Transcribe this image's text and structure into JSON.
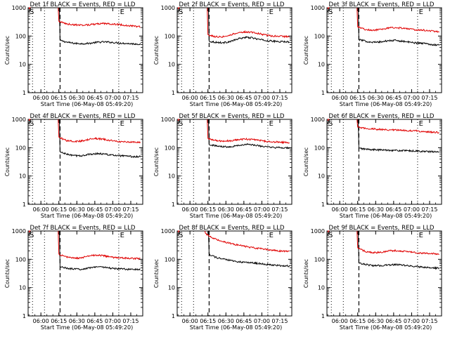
{
  "figure": {
    "legend_text": "BLACK = Events, RED = LLD",
    "xlabel": "Start Time (06-May-08 05:49:20)",
    "ylabel": "Counts/sec",
    "x_tick_labels": [
      "06:00",
      "06:15",
      "06:30",
      "06:45",
      "07:00",
      "07:15"
    ],
    "y_tick_labels": [
      "1",
      "10",
      "100",
      "1000"
    ],
    "marker_s": "S",
    "marker_e": "E",
    "colors": {
      "events": "#000000",
      "lld": "#e00000"
    }
  },
  "chart_data": [
    {
      "type": "line",
      "title": "Det 1f",
      "xlim": [
        "05:49:20",
        "07:25"
      ],
      "ylim": [
        1,
        1000
      ],
      "yscale": "log",
      "series": [
        {
          "name": "Events",
          "start": "06:16",
          "values": [
            70,
            60,
            55,
            54,
            55,
            60,
            62,
            60,
            57,
            55,
            53,
            52
          ]
        },
        {
          "name": "LLD",
          "start": "06:15",
          "values": [
            330,
            270,
            250,
            245,
            250,
            265,
            275,
            270,
            255,
            240,
            225,
            215
          ]
        }
      ]
    },
    {
      "type": "line",
      "title": "Det 2f",
      "xlim": [
        "05:49:20",
        "07:25"
      ],
      "ylim": [
        1,
        1000
      ],
      "yscale": "log",
      "series": [
        {
          "name": "Events",
          "start": "06:16",
          "values": [
            65,
            60,
            58,
            65,
            80,
            90,
            85,
            75,
            68,
            65,
            63,
            62
          ]
        },
        {
          "name": "LLD",
          "start": "06:15",
          "values": [
            110,
            95,
            95,
            110,
            130,
            140,
            135,
            120,
            105,
            100,
            97,
            95
          ]
        }
      ]
    },
    {
      "type": "line",
      "title": "Det 3f",
      "xlim": [
        "05:49:20",
        "07:25"
      ],
      "ylim": [
        1,
        1000
      ],
      "yscale": "log",
      "series": [
        {
          "name": "Events",
          "start": "06:16",
          "values": [
            75,
            65,
            60,
            62,
            68,
            70,
            66,
            60,
            57,
            55,
            50,
            48
          ]
        },
        {
          "name": "LLD",
          "start": "06:15",
          "values": [
            210,
            170,
            160,
            170,
            190,
            200,
            190,
            175,
            165,
            160,
            150,
            140
          ]
        }
      ]
    },
    {
      "type": "line",
      "title": "Det 4f",
      "xlim": [
        "05:49:20",
        "07:25"
      ],
      "ylim": [
        1,
        1000
      ],
      "yscale": "log",
      "series": [
        {
          "name": "Events",
          "start": "06:16",
          "values": [
            70,
            58,
            52,
            52,
            58,
            62,
            60,
            55,
            52,
            50,
            48,
            48
          ]
        },
        {
          "name": "LLD",
          "start": "06:15",
          "values": [
            230,
            180,
            165,
            170,
            195,
            210,
            200,
            180,
            165,
            160,
            155,
            150
          ]
        }
      ]
    },
    {
      "type": "line",
      "title": "Det 5f",
      "xlim": [
        "05:49:20",
        "07:25"
      ],
      "ylim": [
        1,
        1000
      ],
      "yscale": "log",
      "series": [
        {
          "name": "Events",
          "start": "06:16",
          "values": [
            130,
            115,
            108,
            110,
            120,
            130,
            125,
            115,
            105,
            100,
            100,
            98
          ]
        },
        {
          "name": "LLD",
          "start": "06:15",
          "values": [
            210,
            180,
            170,
            175,
            190,
            200,
            195,
            180,
            165,
            160,
            155,
            150
          ]
        }
      ]
    },
    {
      "type": "line",
      "title": "Det 6f",
      "xlim": [
        "05:49:20",
        "07:25"
      ],
      "ylim": [
        1,
        1000
      ],
      "yscale": "log",
      "series": [
        {
          "name": "Events",
          "start": "06:16",
          "values": [
            95,
            88,
            85,
            83,
            82,
            80,
            78,
            77,
            76,
            73,
            72,
            70
          ]
        },
        {
          "name": "LLD",
          "start": "06:15",
          "values": [
            520,
            480,
            460,
            440,
            430,
            420,
            410,
            400,
            390,
            370,
            355,
            340
          ]
        }
      ]
    },
    {
      "type": "line",
      "title": "Det 7f",
      "xlim": [
        "05:49:20",
        "07:25"
      ],
      "ylim": [
        1,
        1000
      ],
      "yscale": "log",
      "series": [
        {
          "name": "Events",
          "start": "06:16",
          "values": [
            55,
            48,
            45,
            45,
            50,
            55,
            53,
            48,
            46,
            45,
            44,
            44
          ]
        },
        {
          "name": "LLD",
          "start": "06:15",
          "values": [
            150,
            120,
            110,
            112,
            130,
            140,
            135,
            120,
            112,
            110,
            108,
            105
          ]
        }
      ]
    },
    {
      "type": "line",
      "title": "Det 8f",
      "xlim": [
        "05:49:20",
        "07:25"
      ],
      "ylim": [
        1,
        1000
      ],
      "yscale": "log",
      "series": [
        {
          "name": "Events",
          "start": "06:16",
          "values": [
            150,
            115,
            100,
            90,
            82,
            78,
            75,
            70,
            66,
            62,
            60,
            58
          ]
        },
        {
          "name": "LLD",
          "start": "06:13",
          "values": [
            800,
            560,
            450,
            380,
            330,
            290,
            260,
            240,
            220,
            205,
            195,
            185
          ]
        }
      ]
    },
    {
      "type": "line",
      "title": "Det 9f",
      "xlim": [
        "05:49:20",
        "07:25"
      ],
      "ylim": [
        1,
        1000
      ],
      "yscale": "log",
      "series": [
        {
          "name": "Events",
          "start": "06:16",
          "values": [
            75,
            65,
            60,
            60,
            63,
            65,
            62,
            58,
            55,
            52,
            50,
            48
          ]
        },
        {
          "name": "LLD",
          "start": "06:15",
          "values": [
            250,
            190,
            170,
            175,
            195,
            205,
            195,
            180,
            170,
            165,
            160,
            155
          ]
        }
      ]
    }
  ]
}
